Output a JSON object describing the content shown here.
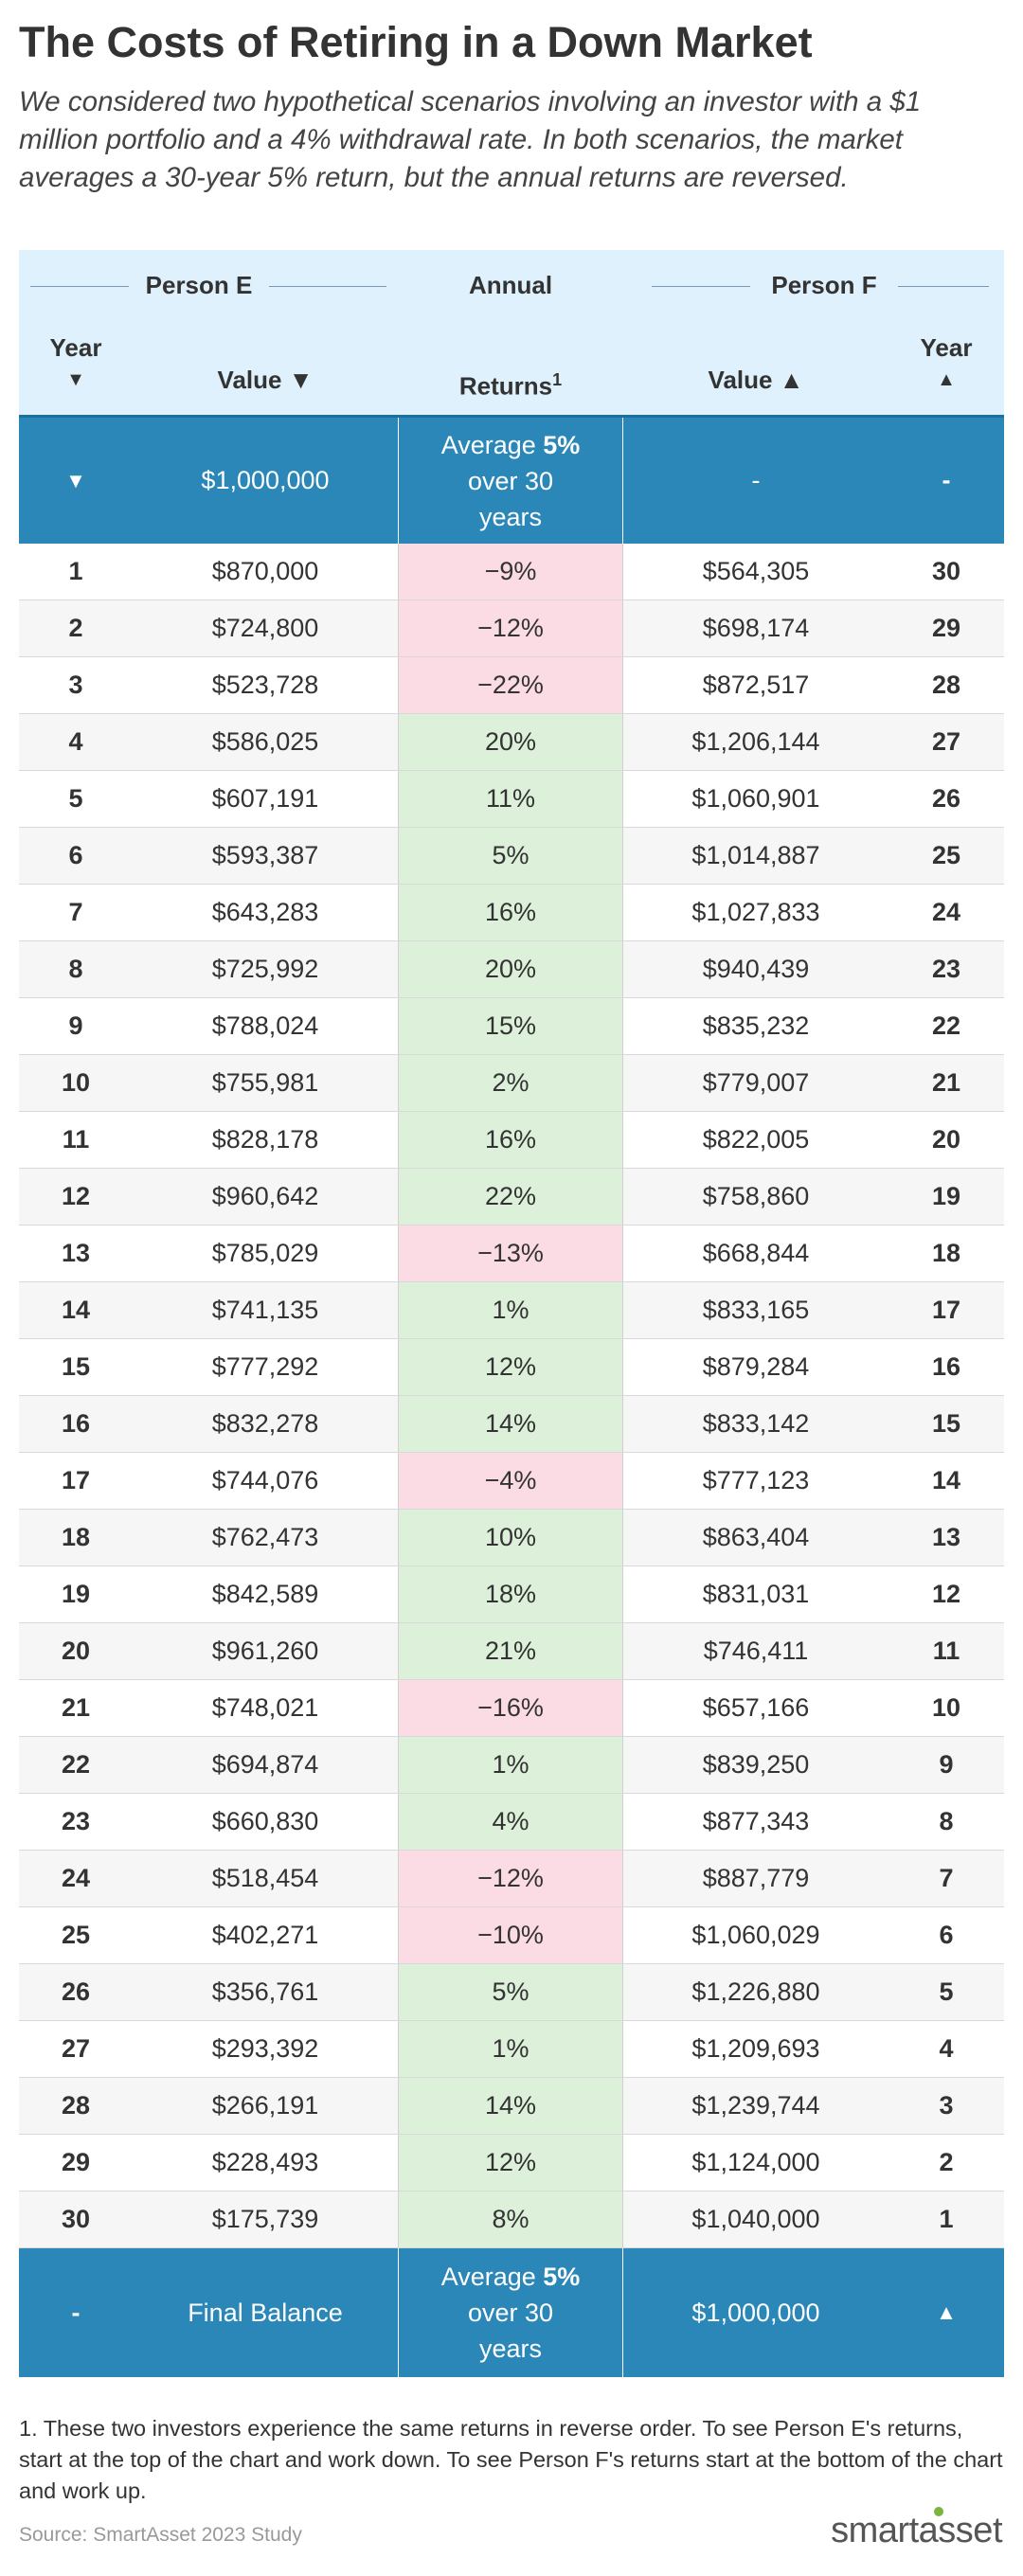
{
  "title": "The Costs of Retiring in a Down Market",
  "subtitle": "We considered two hypothetical scenarios involving an investor with a $1 million portfolio and a 4% withdrawal rate. In both scenarios, the market averages a 30-year 5% return, but the annual returns are reversed.",
  "header": {
    "person_e": "Person E",
    "annual": "Annual",
    "person_f": "Person F",
    "year": "Year",
    "down_arrow": "▼",
    "up_arrow": "▲",
    "value_down": "Value ▼",
    "returns": "Returns",
    "returns_sup": "1",
    "value_up": "Value ▲"
  },
  "start_row": {
    "year_e": "▼",
    "value_e": "$1,000,000",
    "avg_prefix": "Average ",
    "avg_bold": "5%",
    "avg_line2": "over 30",
    "avg_line3": "years",
    "value_f": "-",
    "year_f": "-"
  },
  "rows": [
    {
      "year_e": "1",
      "value_e": "$870,000",
      "return": "−9%",
      "sign": "neg",
      "value_f": "$564,305",
      "year_f": "30"
    },
    {
      "year_e": "2",
      "value_e": "$724,800",
      "return": "−12%",
      "sign": "neg",
      "value_f": "$698,174",
      "year_f": "29"
    },
    {
      "year_e": "3",
      "value_e": "$523,728",
      "return": "−22%",
      "sign": "neg",
      "value_f": "$872,517",
      "year_f": "28"
    },
    {
      "year_e": "4",
      "value_e": "$586,025",
      "return": "20%",
      "sign": "pos",
      "value_f": "$1,206,144",
      "year_f": "27"
    },
    {
      "year_e": "5",
      "value_e": "$607,191",
      "return": "11%",
      "sign": "pos",
      "value_f": "$1,060,901",
      "year_f": "26"
    },
    {
      "year_e": "6",
      "value_e": "$593,387",
      "return": "5%",
      "sign": "pos",
      "value_f": "$1,014,887",
      "year_f": "25"
    },
    {
      "year_e": "7",
      "value_e": "$643,283",
      "return": "16%",
      "sign": "pos",
      "value_f": "$1,027,833",
      "year_f": "24"
    },
    {
      "year_e": "8",
      "value_e": "$725,992",
      "return": "20%",
      "sign": "pos",
      "value_f": "$940,439",
      "year_f": "23"
    },
    {
      "year_e": "9",
      "value_e": "$788,024",
      "return": "15%",
      "sign": "pos",
      "value_f": "$835,232",
      "year_f": "22"
    },
    {
      "year_e": "10",
      "value_e": "$755,981",
      "return": "2%",
      "sign": "pos",
      "value_f": "$779,007",
      "year_f": "21"
    },
    {
      "year_e": "11",
      "value_e": "$828,178",
      "return": "16%",
      "sign": "pos",
      "value_f": "$822,005",
      "year_f": "20"
    },
    {
      "year_e": "12",
      "value_e": "$960,642",
      "return": "22%",
      "sign": "pos",
      "value_f": "$758,860",
      "year_f": "19"
    },
    {
      "year_e": "13",
      "value_e": "$785,029",
      "return": "−13%",
      "sign": "neg",
      "value_f": "$668,844",
      "year_f": "18"
    },
    {
      "year_e": "14",
      "value_e": "$741,135",
      "return": "1%",
      "sign": "pos",
      "value_f": "$833,165",
      "year_f": "17"
    },
    {
      "year_e": "15",
      "value_e": "$777,292",
      "return": "12%",
      "sign": "pos",
      "value_f": "$879,284",
      "year_f": "16"
    },
    {
      "year_e": "16",
      "value_e": "$832,278",
      "return": "14%",
      "sign": "pos",
      "value_f": "$833,142",
      "year_f": "15"
    },
    {
      "year_e": "17",
      "value_e": "$744,076",
      "return": "−4%",
      "sign": "neg",
      "value_f": "$777,123",
      "year_f": "14"
    },
    {
      "year_e": "18",
      "value_e": "$762,473",
      "return": "10%",
      "sign": "pos",
      "value_f": "$863,404",
      "year_f": "13"
    },
    {
      "year_e": "19",
      "value_e": "$842,589",
      "return": "18%",
      "sign": "pos",
      "value_f": "$831,031",
      "year_f": "12"
    },
    {
      "year_e": "20",
      "value_e": "$961,260",
      "return": "21%",
      "sign": "pos",
      "value_f": "$746,411",
      "year_f": "11"
    },
    {
      "year_e": "21",
      "value_e": "$748,021",
      "return": "−16%",
      "sign": "neg",
      "value_f": "$657,166",
      "year_f": "10"
    },
    {
      "year_e": "22",
      "value_e": "$694,874",
      "return": "1%",
      "sign": "pos",
      "value_f": "$839,250",
      "year_f": "9"
    },
    {
      "year_e": "23",
      "value_e": "$660,830",
      "return": "4%",
      "sign": "pos",
      "value_f": "$877,343",
      "year_f": "8"
    },
    {
      "year_e": "24",
      "value_e": "$518,454",
      "return": "−12%",
      "sign": "neg",
      "value_f": "$887,779",
      "year_f": "7"
    },
    {
      "year_e": "25",
      "value_e": "$402,271",
      "return": "−10%",
      "sign": "neg",
      "value_f": "$1,060,029",
      "year_f": "6"
    },
    {
      "year_e": "26",
      "value_e": "$356,761",
      "return": "5%",
      "sign": "pos",
      "value_f": "$1,226,880",
      "year_f": "5"
    },
    {
      "year_e": "27",
      "value_e": "$293,392",
      "return": "1%",
      "sign": "pos",
      "value_f": "$1,209,693",
      "year_f": "4"
    },
    {
      "year_e": "28",
      "value_e": "$266,191",
      "return": "14%",
      "sign": "pos",
      "value_f": "$1,239,744",
      "year_f": "3"
    },
    {
      "year_e": "29",
      "value_e": "$228,493",
      "return": "12%",
      "sign": "pos",
      "value_f": "$1,124,000",
      "year_f": "2"
    },
    {
      "year_e": "30",
      "value_e": "$175,739",
      "return": "8%",
      "sign": "pos",
      "value_f": "$1,040,000",
      "year_f": "1"
    }
  ],
  "end_row": {
    "year_e": "-",
    "value_e": "Final Balance",
    "avg_prefix": "Average ",
    "avg_bold": "5%",
    "avg_line2": "over 30",
    "avg_line3": "years",
    "value_f": "$1,000,000",
    "year_f": "▲"
  },
  "colors": {
    "header_bg": "#dff1fc",
    "summary_row_bg": "#2a87b7",
    "positive_return_bg": "#dcf0da",
    "negative_return_bg": "#fbdbe4",
    "logo_dot": "#7ab33e"
  },
  "footnote": "1. These two investors experience the same returns in reverse order. To see Person E's returns, start at the top of the chart and work down. To see Person F's returns start at the bottom of the chart and work up.",
  "source": "Source: SmartAsset 2023 Study",
  "logo": "smartasset"
}
